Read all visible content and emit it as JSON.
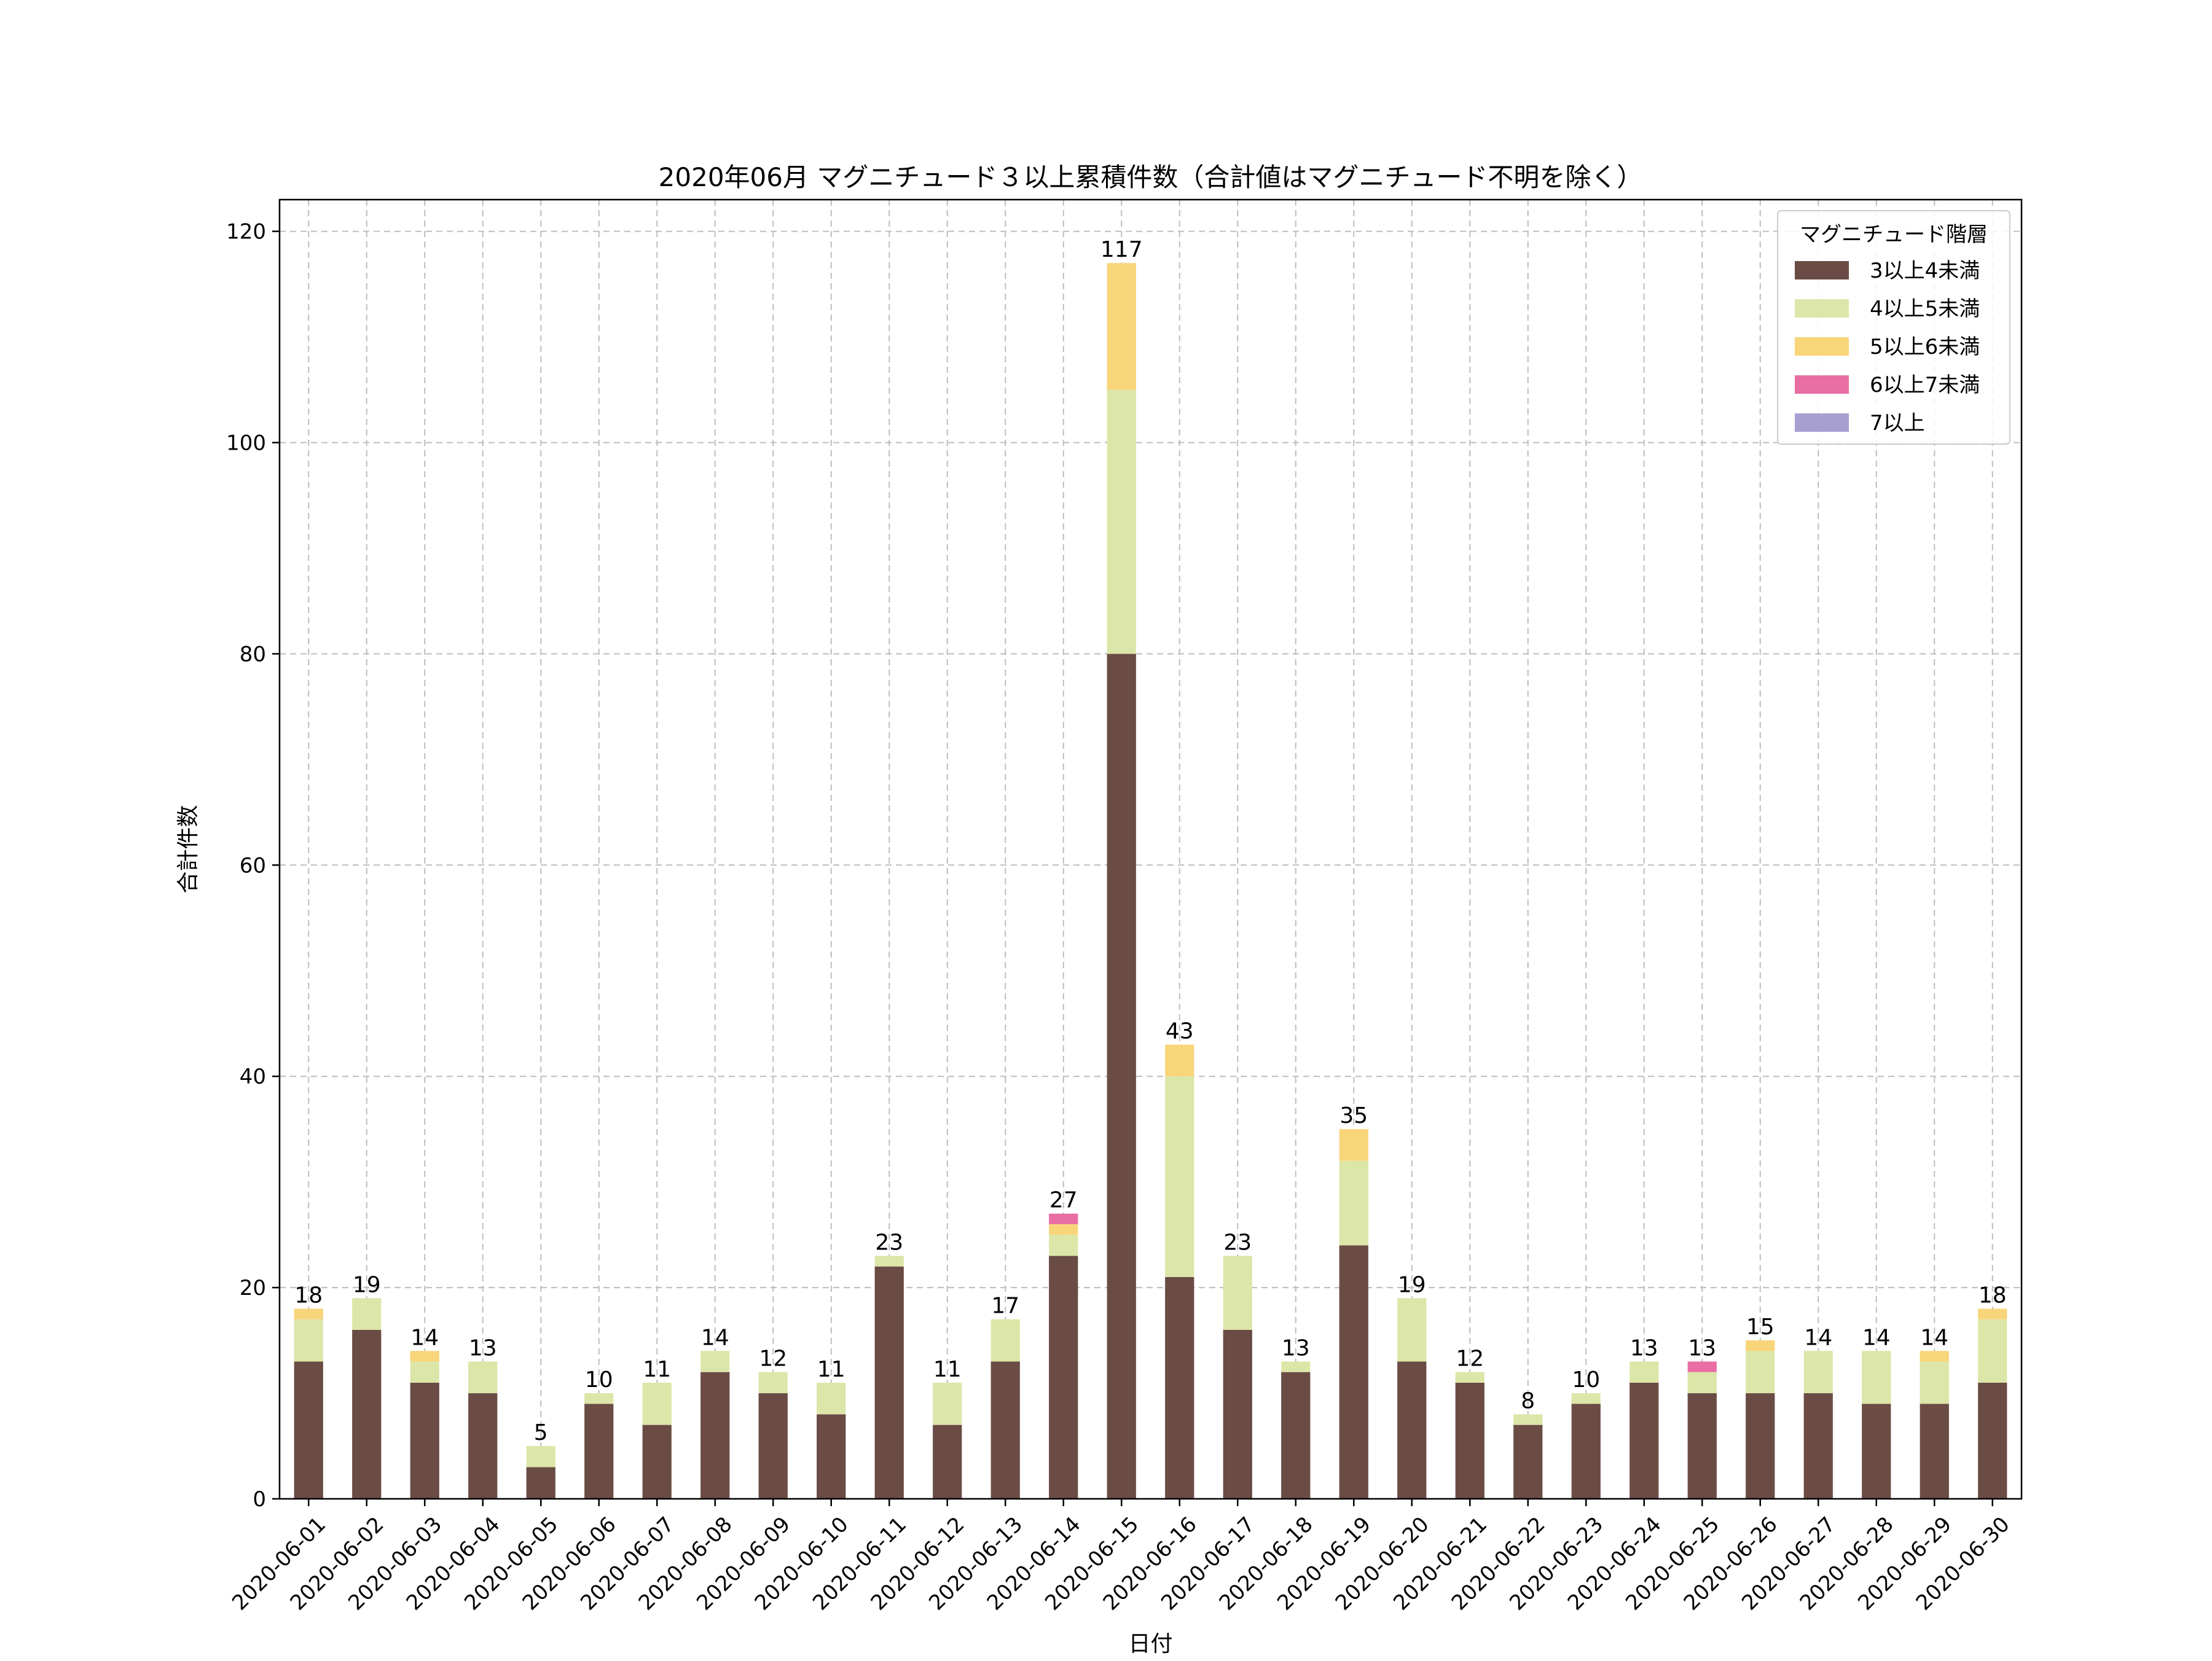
{
  "chart_data": {
    "type": "bar",
    "stacked": true,
    "title": "2020年06月 マグニチュード３以上累積件数（合計値はマグニチュード不明を除く）",
    "xlabel": "日付",
    "ylabel": "合計件数",
    "ylim": [
      0,
      123
    ],
    "yticks": [
      0,
      20,
      40,
      60,
      80,
      100,
      120
    ],
    "grid": true,
    "legend": {
      "title": "マグニチュード階層",
      "placement": "top-right"
    },
    "categories": [
      "2020-06-01",
      "2020-06-02",
      "2020-06-03",
      "2020-06-04",
      "2020-06-05",
      "2020-06-06",
      "2020-06-07",
      "2020-06-08",
      "2020-06-09",
      "2020-06-10",
      "2020-06-11",
      "2020-06-12",
      "2020-06-13",
      "2020-06-14",
      "2020-06-15",
      "2020-06-16",
      "2020-06-17",
      "2020-06-18",
      "2020-06-19",
      "2020-06-20",
      "2020-06-21",
      "2020-06-22",
      "2020-06-23",
      "2020-06-24",
      "2020-06-25",
      "2020-06-26",
      "2020-06-27",
      "2020-06-28",
      "2020-06-29",
      "2020-06-30"
    ],
    "series": [
      {
        "name": "3以上4未満",
        "color": "#6b4c45",
        "values": [
          13,
          16,
          11,
          10,
          3,
          9,
          7,
          12,
          10,
          8,
          22,
          7,
          13,
          23,
          80,
          21,
          16,
          12,
          24,
          13,
          11,
          7,
          9,
          11,
          10,
          10,
          10,
          9,
          9,
          11
        ]
      },
      {
        "name": "4以上5未満",
        "color": "#dde6a9",
        "values": [
          4,
          3,
          2,
          3,
          2,
          1,
          4,
          2,
          2,
          3,
          1,
          4,
          4,
          2,
          25,
          19,
          7,
          1,
          8,
          6,
          1,
          1,
          1,
          2,
          2,
          4,
          4,
          5,
          4,
          6
        ]
      },
      {
        "name": "5以上6未満",
        "color": "#f9d57a",
        "values": [
          1,
          0,
          1,
          0,
          0,
          0,
          0,
          0,
          0,
          0,
          0,
          0,
          0,
          1,
          12,
          3,
          0,
          0,
          3,
          0,
          0,
          0,
          0,
          0,
          0,
          1,
          0,
          0,
          1,
          1
        ]
      },
      {
        "name": "6以上7未満",
        "color": "#e96ea4",
        "values": [
          0,
          0,
          0,
          0,
          0,
          0,
          0,
          0,
          0,
          0,
          0,
          0,
          0,
          1,
          0,
          0,
          0,
          0,
          0,
          0,
          0,
          0,
          0,
          0,
          1,
          0,
          0,
          0,
          0,
          0
        ]
      },
      {
        "name": "7以上",
        "color": "#a79fcf",
        "values": [
          0,
          0,
          0,
          0,
          0,
          0,
          0,
          0,
          0,
          0,
          0,
          0,
          0,
          0,
          0,
          0,
          0,
          0,
          0,
          0,
          0,
          0,
          0,
          0,
          0,
          0,
          0,
          0,
          0,
          0
        ]
      }
    ],
    "totals": [
      18,
      19,
      14,
      13,
      5,
      10,
      11,
      14,
      12,
      11,
      23,
      11,
      17,
      27,
      117,
      43,
      23,
      13,
      35,
      19,
      12,
      8,
      10,
      13,
      13,
      15,
      14,
      14,
      14,
      18
    ]
  }
}
